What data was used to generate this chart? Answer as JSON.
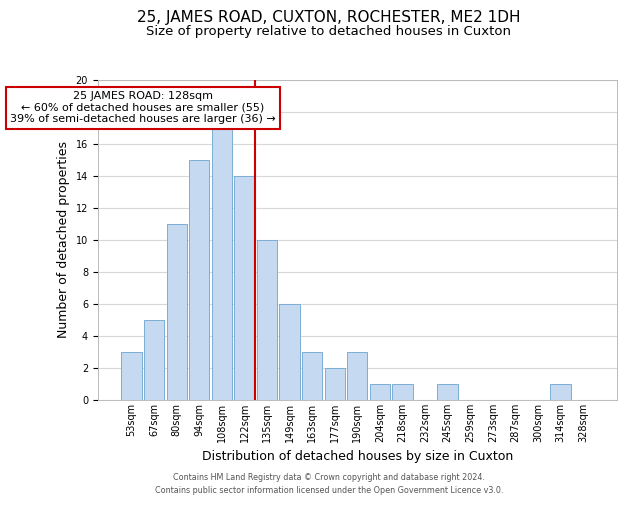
{
  "title": "25, JAMES ROAD, CUXTON, ROCHESTER, ME2 1DH",
  "subtitle": "Size of property relative to detached houses in Cuxton",
  "xlabel": "Distribution of detached houses by size in Cuxton",
  "ylabel": "Number of detached properties",
  "bin_labels": [
    "53sqm",
    "67sqm",
    "80sqm",
    "94sqm",
    "108sqm",
    "122sqm",
    "135sqm",
    "149sqm",
    "163sqm",
    "177sqm",
    "190sqm",
    "204sqm",
    "218sqm",
    "232sqm",
    "245sqm",
    "259sqm",
    "273sqm",
    "287sqm",
    "300sqm",
    "314sqm",
    "328sqm"
  ],
  "bar_heights": [
    3,
    5,
    11,
    15,
    17,
    14,
    10,
    6,
    3,
    2,
    3,
    1,
    1,
    0,
    1,
    0,
    0,
    0,
    0,
    1,
    0
  ],
  "bar_color": "#c5d9f1",
  "bar_edge_color": "#7bafd4",
  "vline_x": 5.45,
  "vline_color": "#cc0000",
  "ylim": [
    0,
    20
  ],
  "yticks": [
    0,
    2,
    4,
    6,
    8,
    10,
    12,
    14,
    16,
    18,
    20
  ],
  "annot_line1": "25 JAMES ROAD: 128sqm",
  "annot_line2": "← 60% of detached houses are smaller (55)",
  "annot_line3": "39% of semi-detached houses are larger (36) →",
  "footer_line1": "Contains HM Land Registry data © Crown copyright and database right 2024.",
  "footer_line2": "Contains public sector information licensed under the Open Government Licence v3.0.",
  "background_color": "#ffffff",
  "grid_color": "#d8d8d8",
  "title_fontsize": 11,
  "subtitle_fontsize": 9.5,
  "axis_label_fontsize": 9,
  "tick_fontsize": 7,
  "annotation_box_edge": "#cc0000",
  "annotation_fontsize": 8
}
